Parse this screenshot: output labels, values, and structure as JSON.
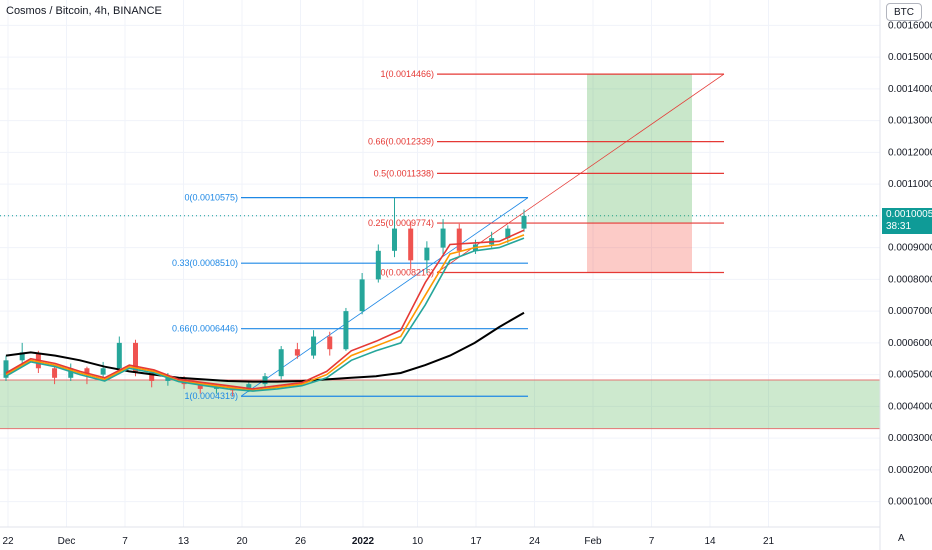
{
  "header": {
    "title": "Cosmos / Bitcoin, 4h, BINANCE",
    "currency": "BTC",
    "auto_label": "A"
  },
  "price_tag": {
    "price": "0.0010005",
    "countdown": "38:31"
  },
  "chart_data": {
    "type": "candlestick",
    "y_ticks": [
      "0.0016000",
      "0.0015000",
      "0.0014000",
      "0.0013000",
      "0.0012000",
      "0.0011000",
      "0.0010000",
      "0.0009000",
      "0.0008000",
      "0.0007000",
      "0.0006000",
      "0.0005000",
      "0.0004000",
      "0.0003000",
      "0.0002000",
      "0.0001000"
    ],
    "x_ticks": [
      "22",
      "Dec",
      "7",
      "13",
      "20",
      "26",
      "2022",
      "10",
      "17",
      "24",
      "Feb",
      "7",
      "14",
      "21"
    ],
    "ylim": [
      2e-05,
      0.00168
    ],
    "last_price": 0.0010005,
    "fib_retracement_blue": [
      {
        "label": "0(0.0010575)",
        "value": 0.0010575
      },
      {
        "label": "0.33(0.0008510)",
        "value": 0.000851
      },
      {
        "label": "0.66(0.0006446)",
        "value": 0.0006446
      },
      {
        "label": "1(0.0004319)",
        "value": 0.0004319
      }
    ],
    "fib_extension_red": [
      {
        "label": "1(0.0014466)",
        "value": 0.0014466
      },
      {
        "label": "0.66(0.0012339)",
        "value": 0.0012339
      },
      {
        "label": "0.5(0.0011338)",
        "value": 0.0011338
      },
      {
        "label": "0.25(0.0009774)",
        "value": 0.0009774
      },
      {
        "label": "0(0.0008216)",
        "value": 0.0008216
      }
    ],
    "long_position": {
      "entry": 0.0009774,
      "target": 0.0014466,
      "stop": 0.0008216
    },
    "support_zone": {
      "low": 0.00033,
      "high": 0.000483
    },
    "series": [
      {
        "name": "",
        "color": "#000000",
        "values": [
          0.00056,
          0.00057,
          0.00056,
          0.000545,
          0.000525,
          0.00051,
          0.0005,
          0.00049,
          0.000485,
          0.00048,
          0.000478,
          0.000478,
          0.00048,
          0.000485,
          0.00049,
          0.000495,
          0.000505,
          0.00053,
          0.00056,
          0.0006,
          0.00065,
          0.000695
        ]
      },
      {
        "name": "",
        "color": "#ff9800",
        "values": [
          0.0005,
          0.000545,
          0.00053,
          0.000505,
          0.000485,
          0.000525,
          0.00051,
          0.00048,
          0.00047,
          0.00046,
          0.00045,
          0.00046,
          0.00047,
          0.0005,
          0.00056,
          0.00059,
          0.00062,
          0.00075,
          0.00088,
          0.0009,
          0.00091,
          0.00094
        ]
      },
      {
        "name": "",
        "color": "#26a69a",
        "values": [
          0.000495,
          0.00054,
          0.000525,
          0.0005,
          0.00048,
          0.00052,
          0.000505,
          0.000478,
          0.000466,
          0.000455,
          0.000448,
          0.000455,
          0.000465,
          0.00049,
          0.000545,
          0.000575,
          0.0006,
          0.00072,
          0.00086,
          0.00089,
          0.0009,
          0.00093
        ]
      },
      {
        "name": "",
        "color": "#e53935",
        "values": [
          0.000505,
          0.00055,
          0.000535,
          0.00051,
          0.00049,
          0.00053,
          0.000515,
          0.000485,
          0.000475,
          0.000465,
          0.000455,
          0.000465,
          0.000475,
          0.00051,
          0.000575,
          0.000605,
          0.00064,
          0.00079,
          0.00091,
          0.000915,
          0.00092,
          0.000955
        ]
      }
    ],
    "candles": [
      [
        0.00049,
        0.000545,
        0.00048,
        0.00056
      ],
      [
        0.000545,
        0.00057,
        0.00053,
        0.0006
      ],
      [
        0.000565,
        0.00052,
        0.000505,
        0.000575
      ],
      [
        0.00052,
        0.00049,
        0.00047,
        0.00053
      ],
      [
        0.00049,
        0.00052,
        0.00048,
        0.000535
      ],
      [
        0.00052,
        0.0005,
        0.00047,
        0.000525
      ],
      [
        0.0005,
        0.00052,
        0.00049,
        0.00054
      ],
      [
        0.00052,
        0.0006,
        0.00051,
        0.00062
      ],
      [
        0.0006,
        0.00051,
        0.000495,
        0.00061
      ],
      [
        0.00051,
        0.00048,
        0.00046,
        0.000515
      ],
      [
        0.00048,
        0.00049,
        0.000465,
        0.000505
      ],
      [
        0.00049,
        0.00047,
        0.000455,
        0.000495
      ],
      [
        0.00047,
        0.000455,
        0.00044,
        0.000475
      ],
      [
        0.000455,
        0.00046,
        0.00044,
        0.00047
      ],
      [
        0.00046,
        0.00045,
        0.000432,
        0.000465
      ],
      [
        0.00045,
        0.00047,
        0.000445,
        0.00048
      ],
      [
        0.00047,
        0.000495,
        0.00046,
        0.000505
      ],
      [
        0.000495,
        0.00058,
        0.000485,
        0.00059
      ],
      [
        0.00058,
        0.00056,
        0.00055,
        0.0006
      ],
      [
        0.00056,
        0.00062,
        0.00055,
        0.00064
      ],
      [
        0.00062,
        0.00058,
        0.00056,
        0.000635
      ],
      [
        0.00058,
        0.0007,
        0.000575,
        0.00071
      ],
      [
        0.0007,
        0.0008,
        0.00069,
        0.00082
      ],
      [
        0.0008,
        0.00089,
        0.00079,
        0.00091
      ],
      [
        0.00089,
        0.00096,
        0.00087,
        0.001058
      ],
      [
        0.00096,
        0.00086,
        0.00083,
        0.00098
      ],
      [
        0.00086,
        0.0009,
        0.00082,
        0.00092
      ],
      [
        0.0009,
        0.00096,
        0.00088,
        0.00099
      ],
      [
        0.00096,
        0.00089,
        0.00087,
        0.000975
      ],
      [
        0.00089,
        0.00091,
        0.00088,
        0.000925
      ],
      [
        0.00091,
        0.00093,
        0.0009,
        0.00095
      ],
      [
        0.00093,
        0.00096,
        0.000915,
        0.00097
      ],
      [
        0.00096,
        0.001,
        0.00095,
        0.00102
      ]
    ]
  }
}
